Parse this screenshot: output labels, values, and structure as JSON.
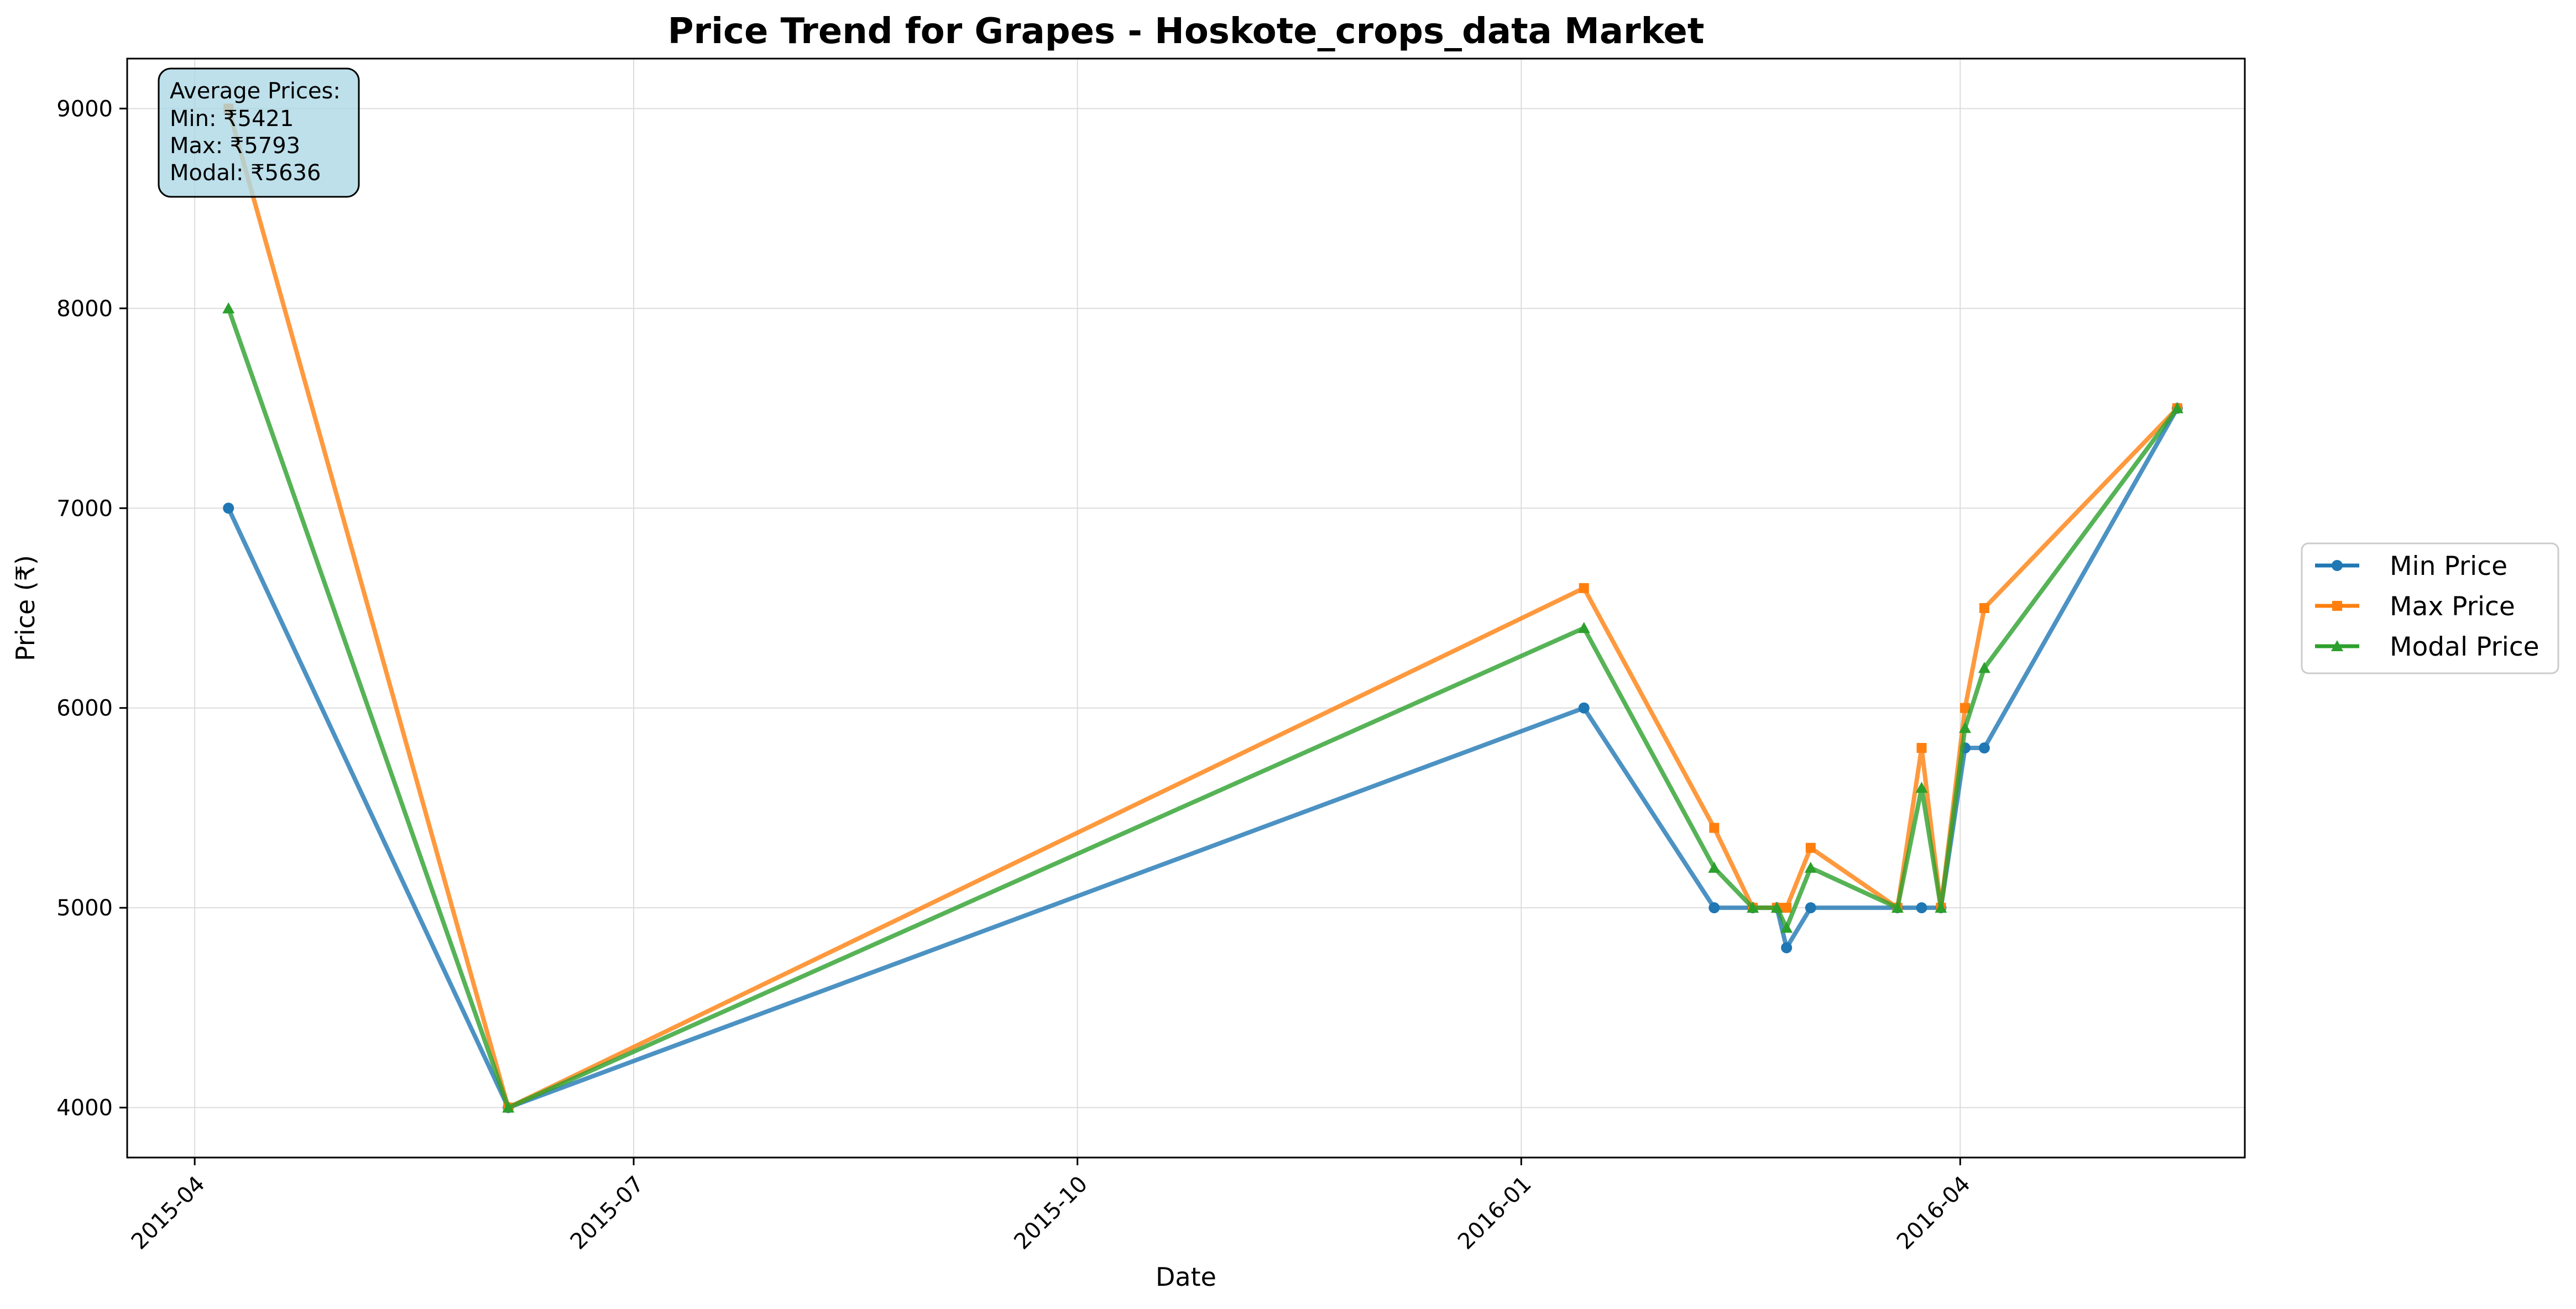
{
  "chart_data": {
    "type": "line",
    "title": "Price Trend for Grapes - Hoskote_crops_data Market",
    "xlabel": "Date",
    "ylabel": "Price (₹)",
    "xlim": [
      "2015-03-18",
      "2016-05-30"
    ],
    "ylim": [
      3750,
      9250
    ],
    "x_ticks": [
      {
        "date": "2015-04-01",
        "label": "2015-04"
      },
      {
        "date": "2015-07-01",
        "label": "2015-07"
      },
      {
        "date": "2015-10-01",
        "label": "2015-10"
      },
      {
        "date": "2016-01-01",
        "label": "2016-01"
      },
      {
        "date": "2016-04-01",
        "label": "2016-04"
      }
    ],
    "y_ticks": [
      4000,
      5000,
      6000,
      7000,
      8000,
      9000
    ],
    "grid": true,
    "legend_position": "right",
    "x": [
      "2015-04-08",
      "2015-06-05",
      "2016-01-14",
      "2016-02-10",
      "2016-02-18",
      "2016-02-23",
      "2016-02-25",
      "2016-03-01",
      "2016-03-19",
      "2016-03-24",
      "2016-03-28",
      "2016-04-02",
      "2016-04-06",
      "2016-05-16"
    ],
    "series": [
      {
        "name": "Min Price",
        "color": "#1f77b4",
        "marker": "circle",
        "values": [
          7000,
          4000,
          6000,
          5000,
          5000,
          5000,
          4800,
          5000,
          5000,
          5000,
          5000,
          5800,
          5800,
          7500
        ]
      },
      {
        "name": "Max Price",
        "color": "#ff7f0e",
        "marker": "square",
        "values": [
          9000,
          4000,
          6600,
          5400,
          5000,
          5000,
          5000,
          5300,
          5000,
          5800,
          5000,
          6000,
          6500,
          7500
        ]
      },
      {
        "name": "Modal Price",
        "color": "#2ca02c",
        "marker": "triangle",
        "values": [
          8000,
          4000,
          6400,
          5200,
          5000,
          5000,
          4900,
          5200,
          5000,
          5600,
          5000,
          5900,
          6200,
          7500
        ]
      }
    ],
    "annotation": {
      "heading": "Average Prices:",
      "lines": [
        "Min: ₹5421",
        "Max: ₹5793",
        "Modal: ₹5636"
      ],
      "background": "#add8e6"
    }
  }
}
